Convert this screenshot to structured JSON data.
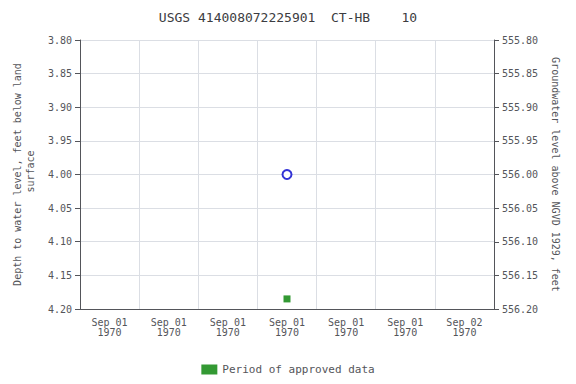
{
  "chart_data": {
    "type": "scatter",
    "title": "USGS 414008072225901  CT-HB    10",
    "y_label": "Depth to water level, feet below land\n surface",
    "y2_label": "Groundwater level above NGVD 1929, feet",
    "categories": [
      "Sep 01\n1970",
      "Sep 01\n1970",
      "Sep 01\n1970",
      "Sep 01\n1970",
      "Sep 01\n1970",
      "Sep 01\n1970",
      "Sep 02\n1970"
    ],
    "series": [
      {
        "color": "#0000cc",
        "marker": "emptyCircle",
        "values": [
          null,
          null,
          null,
          4.0,
          null,
          null,
          null
        ]
      },
      {
        "name": "Period of approved data",
        "color": "#008000",
        "marker": "square",
        "values": [
          null,
          null,
          null,
          4.185,
          null,
          null,
          null
        ]
      }
    ],
    "ylim": [
      4.2,
      3.8
    ],
    "yticks": [
      {
        "value": 3.8,
        "label": "3.80"
      },
      {
        "value": 3.85,
        "label": "3.85"
      },
      {
        "value": 3.9,
        "label": "3.90"
      },
      {
        "value": 3.95,
        "label": "3.95"
      },
      {
        "value": 4.0,
        "label": "4.00"
      },
      {
        "value": 4.05,
        "label": "4.05"
      },
      {
        "value": 4.1,
        "label": "4.10"
      },
      {
        "value": 4.15,
        "label": "4.15"
      },
      {
        "value": 4.2,
        "label": "4.20"
      }
    ],
    "y2lim": [
      556.2,
      555.8
    ],
    "y2ticks": [
      {
        "value": 556.2,
        "label": "556.20"
      },
      {
        "value": 556.15,
        "label": "556.15"
      },
      {
        "value": 556.1,
        "label": "556.10"
      },
      {
        "value": 556.05,
        "label": "556.05"
      },
      {
        "value": 556.0,
        "label": "556.00"
      },
      {
        "value": 555.95,
        "label": "555.95"
      },
      {
        "value": 555.9,
        "label": "555.90"
      },
      {
        "value": 555.85,
        "label": "555.85"
      },
      {
        "value": 555.8,
        "label": "555.80"
      }
    ],
    "grid": true,
    "legend": "bottom"
  }
}
